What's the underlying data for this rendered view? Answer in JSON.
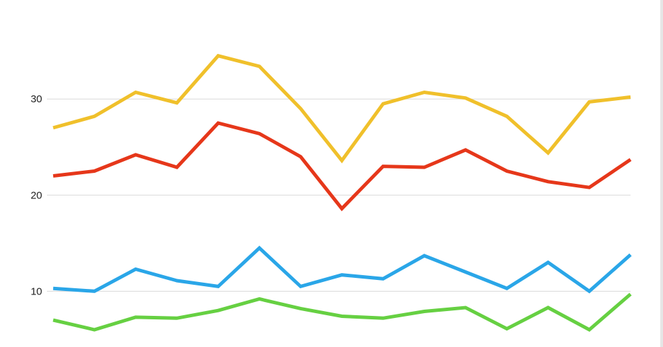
{
  "chart_data": {
    "type": "line",
    "title": "",
    "xlabel": "",
    "ylabel": "",
    "ylim": [
      4.2,
      40.3
    ],
    "y_ticks": [
      10,
      20,
      30
    ],
    "grid": true,
    "legend": "none",
    "x": [
      1,
      2,
      3,
      4,
      5,
      6,
      7,
      8,
      9,
      10,
      11,
      12,
      13,
      14,
      15
    ],
    "series": [
      {
        "color": "#f0c02b",
        "values": [
          27.0,
          28.2,
          30.7,
          29.6,
          34.5,
          33.4,
          29.0,
          23.6,
          29.5,
          30.7,
          30.1,
          28.2,
          24.4,
          29.7,
          30.2
        ]
      },
      {
        "color": "#e6371a",
        "values": [
          22.0,
          22.5,
          24.2,
          22.9,
          27.5,
          26.4,
          24.0,
          18.6,
          23.0,
          22.9,
          24.7,
          22.5,
          21.4,
          20.8,
          23.7
        ]
      },
      {
        "color": "#2aa6e8",
        "values": [
          10.3,
          10.0,
          12.3,
          11.1,
          10.5,
          14.5,
          10.5,
          11.7,
          11.3,
          13.7,
          12.0,
          10.3,
          13.0,
          10.0,
          13.8
        ]
      },
      {
        "color": "#66d042",
        "values": [
          7.0,
          6.0,
          7.3,
          7.2,
          8.0,
          9.2,
          8.2,
          7.4,
          7.2,
          7.9,
          8.3,
          6.1,
          8.3,
          6.0,
          9.7
        ]
      }
    ]
  }
}
